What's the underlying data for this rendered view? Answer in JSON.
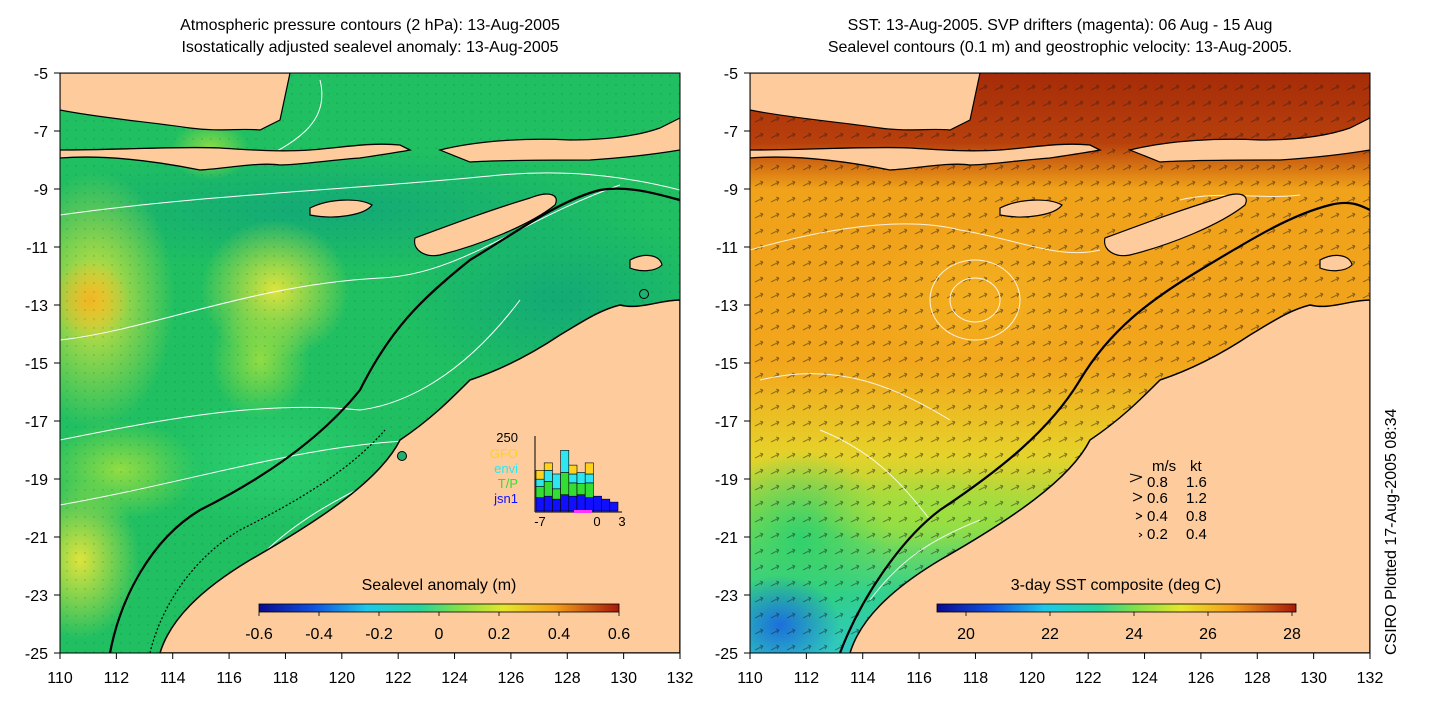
{
  "left": {
    "title1": "Atmospheric pressure contours (2 hPa): 13-Aug-2005",
    "title2": "Isostatically adjusted sealevel anomaly: 13-Aug-2005",
    "colorbar": {
      "label": "Sealevel anomaly (m)",
      "ticks": [
        "-0.6",
        "-0.4",
        "-0.2",
        "0",
        "0.2",
        "0.4",
        "0.6"
      ]
    },
    "inset": {
      "max_label": "250",
      "legend": [
        {
          "label": "GFO",
          "color": "#ffd21e"
        },
        {
          "label": "envi",
          "color": "#2ee6f0"
        },
        {
          "label": "T/P",
          "color": "#33dd33"
        },
        {
          "label": "jsn1",
          "color": "#1010ff"
        }
      ],
      "x_ticks": [
        "-7",
        "0",
        "3"
      ],
      "bars": [
        {
          "stack": [
            0.18,
            0.15,
            0.1,
            0.12
          ]
        },
        {
          "stack": [
            0.2,
            0.2,
            0.15,
            0.1
          ]
        },
        {
          "stack": [
            0.16,
            0.14,
            0.2,
            0.0
          ]
        },
        {
          "stack": [
            0.22,
            0.3,
            0.3,
            0.0
          ]
        },
        {
          "stack": [
            0.2,
            0.18,
            0.12,
            0.12
          ]
        },
        {
          "stack": [
            0.22,
            0.15,
            0.15,
            0.0
          ]
        },
        {
          "stack": [
            0.18,
            0.2,
            0.12,
            0.15
          ]
        },
        {
          "stack": [
            0.2,
            0.0,
            0.0,
            0.0
          ]
        },
        {
          "stack": [
            0.16,
            0.0,
            0.0,
            0.0
          ]
        },
        {
          "stack": [
            0.12,
            0.0,
            0.0,
            0.0
          ]
        }
      ]
    }
  },
  "right": {
    "title1": "SST: 13-Aug-2005. SVP drifters (magenta): 06 Aug - 15 Aug",
    "title2": "Sealevel contours (0.1 m) and geostrophic velocity: 13-Aug-2005.",
    "colorbar": {
      "label": "3-day SST composite (deg C)",
      "ticks": [
        "20",
        "22",
        "24",
        "26",
        "28"
      ]
    },
    "velocity_legend": {
      "header_ms": "m/s",
      "header_kt": "kt",
      "rows": [
        {
          "ms": "0.8",
          "kt": "1.6"
        },
        {
          "ms": "0.6",
          "kt": "1.2"
        },
        {
          "ms": "0.4",
          "kt": "0.8"
        },
        {
          "ms": "0.2",
          "kt": "0.4"
        }
      ]
    }
  },
  "axes": {
    "lon_ticks": [
      "110",
      "112",
      "114",
      "116",
      "118",
      "120",
      "122",
      "124",
      "126",
      "128",
      "130",
      "132"
    ],
    "lat_ticks": [
      "-5",
      "-7",
      "-9",
      "-11",
      "-13",
      "-15",
      "-17",
      "-19",
      "-21",
      "-23",
      "-25"
    ],
    "lon_range": [
      110,
      132
    ],
    "lat_range": [
      -25,
      -5
    ]
  },
  "credit": "CSIRO Plotted 17-Aug-2005 08:34",
  "colors": {
    "land": "#fdcb9c",
    "ocean_sla": "#1fbf62",
    "ocean_sst": "#f0a21a",
    "sst_warm_north": "#a52c08"
  }
}
